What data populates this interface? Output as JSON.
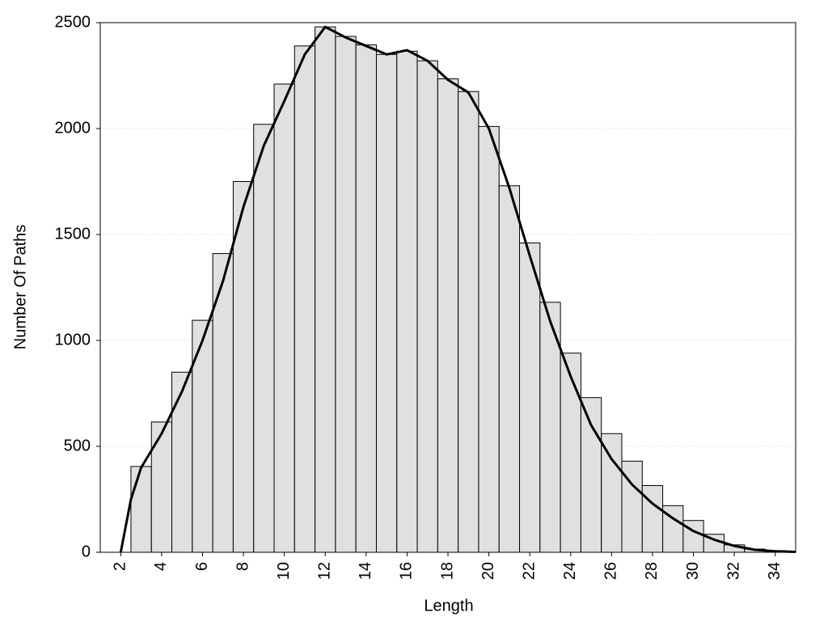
{
  "chart_data": {
    "type": "histogram",
    "xlabel": "Length",
    "ylabel": "Number Of Paths",
    "bins": [
      2.5,
      3.5,
      4.5,
      5.5,
      6.5,
      7.5,
      8.5,
      9.5,
      10.5,
      11.5,
      12.5,
      13.5,
      14.5,
      15.5,
      16.5,
      17.5,
      18.5,
      19.5,
      20.5,
      21.5,
      22.5,
      23.5,
      24.5,
      25.5,
      26.5,
      27.5,
      28.5,
      29.5,
      30.5,
      31.5,
      32.5,
      33.5,
      34.5
    ],
    "values": [
      405,
      615,
      850,
      1095,
      1410,
      1750,
      2020,
      2210,
      2390,
      2480,
      2435,
      2395,
      2350,
      2365,
      2320,
      2235,
      2175,
      2010,
      1730,
      1460,
      1180,
      940,
      730,
      560,
      430,
      315,
      220,
      150,
      85,
      35,
      15,
      8
    ],
    "color": "#e0e0e0",
    "curve": {
      "color": "#000000",
      "x": [
        2,
        2.5,
        3,
        3.5,
        4,
        5,
        6,
        7,
        8,
        9,
        10,
        11,
        12,
        13,
        14,
        15,
        16,
        17,
        18,
        19,
        20,
        21,
        22,
        23,
        24,
        25,
        26,
        27,
        28,
        29,
        30,
        31,
        32,
        33,
        34,
        35
      ],
      "values": [
        0,
        250,
        400,
        480,
        560,
        760,
        1000,
        1280,
        1630,
        1920,
        2130,
        2350,
        2480,
        2430,
        2390,
        2350,
        2370,
        2320,
        2230,
        2170,
        2000,
        1720,
        1400,
        1090,
        830,
        600,
        440,
        320,
        230,
        160,
        100,
        60,
        30,
        12,
        5,
        2
      ]
    },
    "xlim": [
      1,
      35
    ],
    "ylim": [
      0,
      2500
    ],
    "xticks": [
      2,
      4,
      6,
      8,
      10,
      12,
      14,
      16,
      18,
      20,
      22,
      24,
      26,
      28,
      30,
      32,
      34
    ],
    "yticks": [
      0,
      500,
      1000,
      1500,
      2000,
      2500
    ],
    "grid": true
  }
}
